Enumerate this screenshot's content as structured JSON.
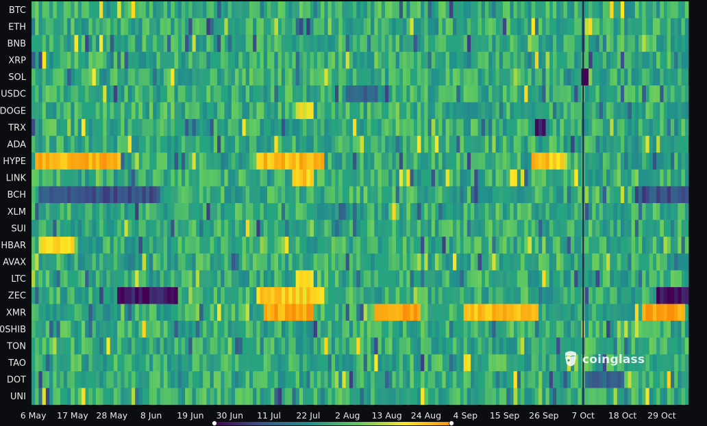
{
  "chart_data": {
    "type": "heatmap",
    "title": "",
    "xlabel": "",
    "ylabel": "",
    "rows": [
      "BTC",
      "ETH",
      "BNB",
      "XRP",
      "SOL",
      "USDC",
      "DOGE",
      "TRX",
      "ADA",
      "HYPE",
      "LINK",
      "BCH",
      "XLM",
      "SUI",
      "HBAR",
      "AVAX",
      "LTC",
      "ZEC",
      "XMR",
      "0SHIB",
      "TON",
      "TAO",
      "DOT",
      "UNI"
    ],
    "x_ticks": [
      "6 May",
      "17 May",
      "28 May",
      "8 Jun",
      "19 Jun",
      "30 Jun",
      "11 Jul",
      "22 Jul",
      "2 Aug",
      "13 Aug",
      "24 Aug",
      "4 Sep",
      "15 Sep",
      "26 Sep",
      "7 Oct",
      "18 Oct",
      "29 Oct"
    ],
    "x_range": [
      "6 May",
      "5 Nov"
    ],
    "colorscale": [
      "#440154",
      "#3b528b",
      "#21918c",
      "#5ec962",
      "#fde725",
      "#f98e09"
    ],
    "base_color": "#26a37f",
    "value_range": [
      -1,
      1
    ],
    "hot_spans": [
      {
        "row": "HYPE",
        "from": "7 May",
        "to": "30 May",
        "value": 0.85
      },
      {
        "row": "HYPE",
        "from": "8 Jul",
        "to": "26 Jul",
        "value": 0.8
      },
      {
        "row": "HYPE",
        "from": "23 Sep",
        "to": "1 Oct",
        "value": 0.75
      },
      {
        "row": "XMR",
        "from": "10 Jul",
        "to": "23 Jul",
        "value": 0.9
      },
      {
        "row": "XMR",
        "from": "10 Aug",
        "to": "22 Aug",
        "value": 0.92
      },
      {
        "row": "XMR",
        "from": "4 Sep",
        "to": "24 Sep",
        "value": 0.78
      },
      {
        "row": "XMR",
        "from": "24 Oct",
        "to": "4 Nov",
        "value": 0.95
      },
      {
        "row": "ZEC",
        "from": "8 Jul",
        "to": "26 Jul",
        "value": 0.7
      },
      {
        "row": "LINK",
        "from": "18 Jul",
        "to": "23 Jul",
        "value": 0.75
      },
      {
        "row": "LTC",
        "from": "19 Jul",
        "to": "23 Jul",
        "value": 0.7
      },
      {
        "row": "DOGE",
        "from": "19 Jul",
        "to": "23 Jul",
        "value": 0.6
      },
      {
        "row": "HBAR",
        "from": "8 May",
        "to": "17 May",
        "value": 0.6
      }
    ],
    "cold_spans": [
      {
        "row": "ZEC",
        "from": "30 May",
        "to": "15 Jun",
        "value": -0.9
      },
      {
        "row": "ZEC",
        "from": "28 Oct",
        "to": "5 Nov",
        "value": -0.95
      },
      {
        "row": "BCH",
        "from": "8 May",
        "to": "10 Jun",
        "value": -0.6
      },
      {
        "row": "BCH",
        "from": "22 Oct",
        "to": "5 Nov",
        "value": -0.6
      },
      {
        "row": "USDC",
        "from": "2 Aug",
        "to": "10 Aug",
        "value": -0.55
      },
      {
        "row": "SOL",
        "from": "7 Oct",
        "to": "8 Oct",
        "value": -1.0
      },
      {
        "row": "TRX",
        "from": "24 Sep",
        "to": "26 Sep",
        "value": -0.9
      },
      {
        "row": "DOT",
        "from": "8 Oct",
        "to": "18 Oct",
        "value": -0.55
      }
    ],
    "event_line": "7 Oct"
  },
  "watermark": {
    "text": "coinglass",
    "icon": "coinglass-logo-icon"
  }
}
